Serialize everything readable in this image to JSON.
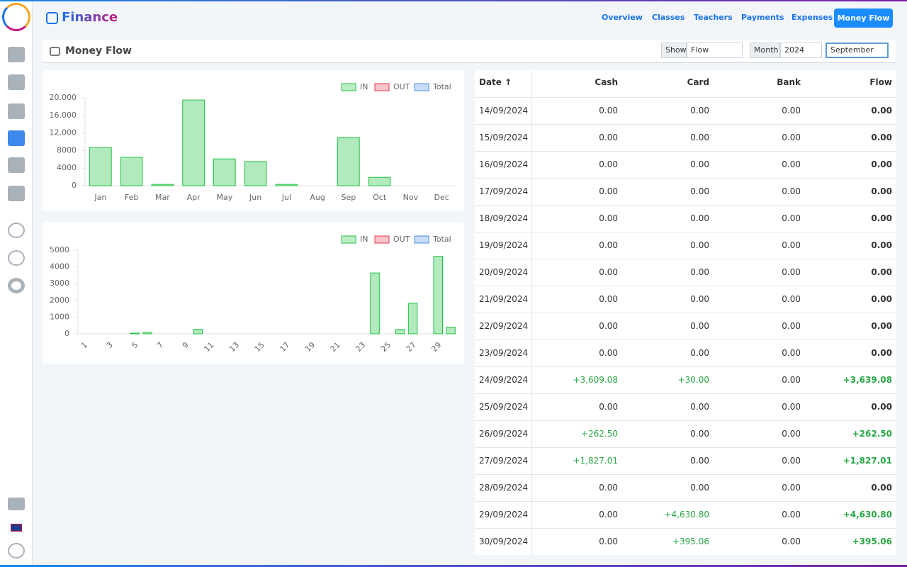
{
  "header": {
    "title": "Finance",
    "nav": [
      "Overview",
      "Classes",
      "Teachers",
      "Payments",
      "Expenses",
      "Money Flow"
    ]
  },
  "panel": {
    "title": "Money Flow",
    "show_label": "Show",
    "show_value": "Flow",
    "month_label": "Month",
    "year": "2024",
    "month": "September"
  },
  "charts": [
    {
      "type": "bar",
      "categories": [
        "Jan",
        "Feb",
        "Mar",
        "Apr",
        "May",
        "Jun",
        "Jul",
        "Aug",
        "Sep",
        "Oct",
        "Nov",
        "Dec"
      ],
      "series": [
        {
          "name": "IN",
          "color": "#22c243",
          "values": [
            8700,
            6450,
            300,
            19500,
            6100,
            5500,
            300,
            0,
            11000,
            1900,
            0,
            0
          ]
        },
        {
          "name": "OUT",
          "color": "#e8394d"
        },
        {
          "name": "Total",
          "color": "#4a90e2"
        }
      ],
      "ylim": [
        0,
        20000
      ],
      "yticks": [
        0,
        4000,
        8000,
        {
          "value": 12000,
          "label": "12.000"
        },
        {
          "value": 16000,
          "label": "16.000"
        },
        {
          "value": 20000,
          "label": "20.000"
        }
      ]
    },
    {
      "type": "bar",
      "categories": [
        "1",
        null,
        "3",
        null,
        "5",
        null,
        "7",
        null,
        "9",
        null,
        "11",
        null,
        "13",
        null,
        "15",
        null,
        "17",
        null,
        "19",
        null,
        "21",
        null,
        "23",
        null,
        "25",
        null,
        "27",
        null,
        "29",
        null
      ],
      "series": [
        {
          "name": "IN",
          "color": "#22c243",
          "values": [
            0,
            0,
            0,
            0,
            40,
            80,
            0,
            0,
            0,
            270,
            0,
            0,
            0,
            0,
            0,
            0,
            0,
            0,
            0,
            0,
            0,
            0,
            0,
            3639.08,
            0,
            262.5,
            1827.01,
            0,
            4630.8,
            395.06
          ]
        },
        {
          "name": "OUT",
          "color": "#e8394d"
        },
        {
          "name": "Total",
          "color": "#4a90e2"
        }
      ],
      "ylim": [
        0,
        5000
      ],
      "yticks": [
        0,
        1000,
        2000,
        3000,
        4000,
        5000
      ]
    }
  ],
  "table": {
    "columns": [
      "Date",
      "Cash",
      "Card",
      "Bank",
      "Flow"
    ],
    "rows": [
      [
        "14/09/2024",
        "0.00",
        "0.00",
        "0.00",
        "0.00"
      ],
      [
        "15/09/2024",
        "0.00",
        "0.00",
        "0.00",
        "0.00"
      ],
      [
        "16/09/2024",
        "0.00",
        "0.00",
        "0.00",
        "0.00"
      ],
      [
        "17/09/2024",
        "0.00",
        "0.00",
        "0.00",
        "0.00"
      ],
      [
        "18/09/2024",
        "0.00",
        "0.00",
        "0.00",
        "0.00"
      ],
      [
        "19/09/2024",
        "0.00",
        "0.00",
        "0.00",
        "0.00"
      ],
      [
        "20/09/2024",
        "0.00",
        "0.00",
        "0.00",
        "0.00"
      ],
      [
        "21/09/2024",
        "0.00",
        "0.00",
        "0.00",
        "0.00"
      ],
      [
        "22/09/2024",
        "0.00",
        "0.00",
        "0.00",
        "0.00"
      ],
      [
        "23/09/2024",
        "0.00",
        "0.00",
        "0.00",
        "0.00"
      ],
      [
        "24/09/2024",
        "+3,609.08",
        "+30.00",
        "0.00",
        "+3,639.08"
      ],
      [
        "25/09/2024",
        "0.00",
        "0.00",
        "0.00",
        "0.00"
      ],
      [
        "26/09/2024",
        "+262.50",
        "0.00",
        "0.00",
        "+262.50"
      ],
      [
        "27/09/2024",
        "+1,827.01",
        "0.00",
        "0.00",
        "+1,827.01"
      ],
      [
        "28/09/2024",
        "0.00",
        "0.00",
        "0.00",
        "0.00"
      ],
      [
        "29/09/2024",
        "0.00",
        "+4,630.80",
        "0.00",
        "+4,630.80"
      ],
      [
        "30/09/2024",
        "0.00",
        "+395.06",
        "0.00",
        "+395.06"
      ]
    ]
  }
}
